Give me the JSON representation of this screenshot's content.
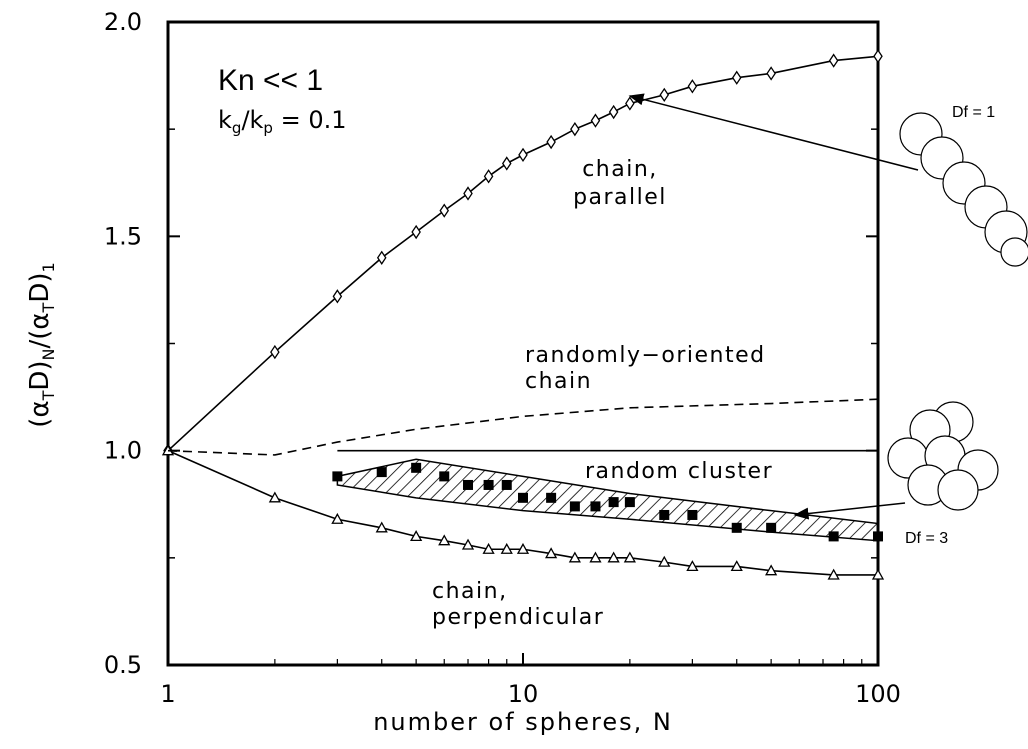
{
  "chart_data": {
    "type": "line",
    "xlabel": "number of spheres, N",
    "ylabel": [
      "(α",
      "T",
      "D)",
      "N",
      "/(α",
      "T",
      "D)",
      "1"
    ],
    "xscale": "log",
    "xlim": [
      1,
      100
    ],
    "ylim": [
      0.5,
      2.0
    ],
    "xticks": [
      1,
      10,
      100
    ],
    "yticks": [
      {
        "value": 0.5,
        "label": "0.5"
      },
      {
        "value": 1.0,
        "label": "1.0"
      },
      {
        "value": 1.5,
        "label": "1.5"
      },
      {
        "value": 2.0,
        "label": "2.0"
      }
    ],
    "yminor_ticks": [
      0.75,
      1.25,
      1.75
    ],
    "annotations": {
      "knudsen": "Kn << 1",
      "ratio": [
        "k",
        "g",
        "/k",
        "p",
        " = 0.1"
      ],
      "df1": "Df = 1",
      "df3": "Df = 3"
    },
    "series": [
      {
        "label": [
          "chain,",
          "parallel"
        ],
        "marker": "diamond",
        "line": "solid",
        "color": "#000000",
        "x": [
          1,
          2,
          3,
          4,
          5,
          6,
          7,
          8,
          9,
          10,
          12,
          14,
          16,
          18,
          20,
          25,
          30,
          40,
          50,
          75,
          100
        ],
        "values": [
          1.0,
          1.23,
          1.36,
          1.45,
          1.51,
          1.56,
          1.6,
          1.64,
          1.67,
          1.69,
          1.72,
          1.75,
          1.77,
          1.79,
          1.81,
          1.83,
          1.85,
          1.87,
          1.88,
          1.91,
          1.92
        ]
      },
      {
        "label": [
          "chain,",
          "perpendicular"
        ],
        "marker": "triangle",
        "line": "solid",
        "color": "#000000",
        "x": [
          1,
          2,
          3,
          4,
          5,
          6,
          7,
          8,
          9,
          10,
          12,
          14,
          16,
          18,
          20,
          25,
          30,
          40,
          50,
          75,
          100
        ],
        "values": [
          1.0,
          0.89,
          0.84,
          0.82,
          0.8,
          0.79,
          0.78,
          0.77,
          0.77,
          0.77,
          0.76,
          0.75,
          0.75,
          0.75,
          0.75,
          0.74,
          0.73,
          0.73,
          0.72,
          0.71,
          0.71
        ]
      },
      {
        "label": [
          "randomly−oriented",
          "chain"
        ],
        "marker": "none",
        "line": "dashed",
        "color": "#000000",
        "x": [
          1,
          2,
          3,
          5,
          10,
          20,
          50,
          100
        ],
        "values": [
          1.0,
          0.99,
          1.02,
          1.05,
          1.08,
          1.1,
          1.11,
          1.12
        ]
      },
      {
        "label": [
          "random cluster"
        ],
        "marker": "none",
        "line": "solid",
        "color": "#000000",
        "x": [
          3,
          100
        ],
        "values": [
          1.0,
          1.0
        ]
      },
      {
        "marker": "square",
        "line": "none",
        "color": "#000000",
        "x": [
          3,
          4,
          5,
          6,
          7,
          8,
          9,
          10,
          12,
          14,
          16,
          18,
          20,
          25,
          30,
          40,
          50,
          75,
          100
        ],
        "values": [
          0.94,
          0.95,
          0.96,
          0.94,
          0.92,
          0.92,
          0.92,
          0.89,
          0.89,
          0.87,
          0.87,
          0.88,
          0.88,
          0.85,
          0.85,
          0.82,
          0.82,
          0.8,
          0.8
        ]
      },
      {
        "marker": "band",
        "line": "hatched",
        "color": "#000000",
        "x": [
          3,
          5,
          10,
          20,
          50,
          100
        ],
        "upper": [
          0.94,
          0.98,
          0.94,
          0.9,
          0.86,
          0.83
        ],
        "lower": [
          0.92,
          0.89,
          0.86,
          0.84,
          0.81,
          0.79
        ]
      }
    ]
  }
}
